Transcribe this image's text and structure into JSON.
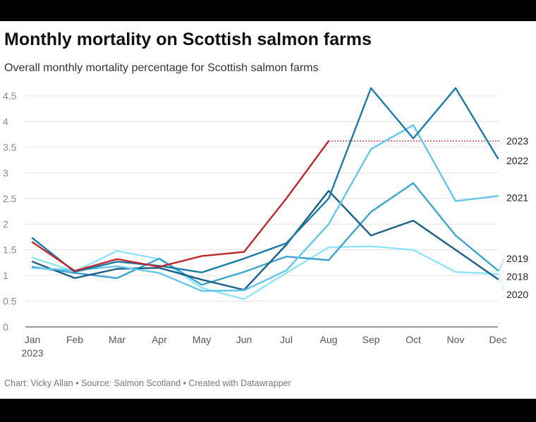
{
  "title": "Monthly mortality on Scottish salmon farms",
  "subtitle": "Overall monthly mortality percentage for Scottish salmon farms",
  "footer": "Chart: Vicky Allan • Source: Salmon Scotland • Created with Datawrapper",
  "chart_data": {
    "type": "line",
    "title": "Monthly mortality on Scottish salmon farms",
    "subtitle": "Overall monthly mortality percentage for Scottish salmon farms",
    "xlabel": "",
    "ylabel": "",
    "categories": [
      "Jan",
      "Feb",
      "Mar",
      "Apr",
      "May",
      "Jun",
      "Jul",
      "Aug",
      "Sep",
      "Oct",
      "Nov",
      "Dec"
    ],
    "first_category_sublabel": "2023",
    "ylim": [
      0,
      4.5
    ],
    "yticks": [
      0,
      0.5,
      1,
      1.5,
      2,
      2.5,
      3,
      3.5,
      4,
      4.5
    ],
    "ytick_labels": [
      "0",
      "0.5",
      "1",
      "1.5",
      "2",
      "2.5",
      "3",
      "3.5",
      "4",
      "4.5"
    ],
    "grid": "horizontal",
    "legend": "direct labels on right",
    "series": [
      {
        "name": "2020",
        "color": "#8fe4f5",
        "values": [
          1.35,
          1.08,
          1.48,
          1.32,
          0.76,
          0.54,
          1.05,
          1.55,
          1.57,
          1.5,
          1.07,
          1.03
        ]
      },
      {
        "name": "2019",
        "color": "#3aa3cf",
        "values": [
          1.17,
          1.05,
          0.95,
          1.33,
          0.82,
          1.07,
          1.37,
          1.3,
          2.24,
          2.8,
          1.78,
          1.1
        ]
      },
      {
        "name": "2018",
        "color": "#1b5f84",
        "values": [
          1.27,
          0.95,
          1.13,
          1.15,
          0.92,
          0.72,
          1.6,
          2.65,
          1.78,
          2.07,
          1.5,
          0.93
        ]
      },
      {
        "name": "2021",
        "color": "#62c6ea",
        "values": [
          1.15,
          1.1,
          1.18,
          1.05,
          0.7,
          0.71,
          1.1,
          2.0,
          3.46,
          3.93,
          2.45,
          2.55
        ]
      },
      {
        "name": "2022",
        "color": "#1a7ba6",
        "values": [
          1.73,
          1.07,
          1.27,
          1.19,
          1.06,
          1.33,
          1.63,
          2.5,
          4.65,
          3.67,
          4.65,
          3.28
        ]
      },
      {
        "name": "2023",
        "color": "#c0272d",
        "values": [
          1.65,
          1.09,
          1.32,
          1.17,
          1.38,
          1.46,
          2.5,
          3.62,
          null,
          null,
          null,
          null
        ]
      }
    ],
    "annotation": {
      "series": "2023",
      "value": 3.62,
      "style": "dotted reference line to right edge"
    }
  }
}
